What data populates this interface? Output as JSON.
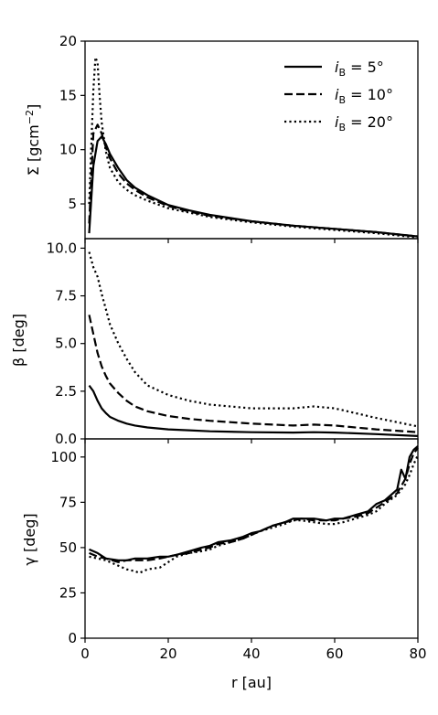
{
  "chart_data": [
    {
      "type": "line",
      "panel": "top",
      "ylabel": "Σ [gcm",
      "ylabel_sup": "−2",
      "ylabel_end": "]",
      "xlim": [
        0,
        80
      ],
      "ylim": [
        1.8,
        20
      ],
      "yticks": [
        5,
        10,
        15,
        20
      ],
      "yticklabels": [
        "5",
        "10",
        "15",
        "20"
      ],
      "xticks": [
        0,
        20,
        40,
        60,
        80
      ],
      "legend": {
        "placement": "top-right",
        "entries": [
          {
            "prefix": "i",
            "sub": "B",
            "value": " = 5°",
            "style": "solid"
          },
          {
            "prefix": "i",
            "sub": "B",
            "value": " = 10°",
            "style": "dashed"
          },
          {
            "prefix": "i",
            "sub": "B",
            "value": " = 20°",
            "style": "dotted"
          }
        ]
      },
      "series": [
        {
          "style": "solid",
          "x": [
            1,
            2,
            3,
            4,
            5,
            6,
            8,
            10,
            12,
            15,
            20,
            25,
            30,
            40,
            50,
            60,
            70,
            80
          ],
          "y": [
            2.3,
            8.5,
            10.8,
            11.2,
            10.5,
            9.6,
            8.3,
            7.2,
            6.5,
            5.8,
            4.9,
            4.4,
            4.0,
            3.4,
            3.0,
            2.7,
            2.4,
            2.0
          ]
        },
        {
          "style": "dashed",
          "x": [
            1,
            2,
            3,
            4,
            5,
            6,
            8,
            10,
            12,
            15,
            20,
            25,
            30,
            40,
            50,
            60,
            70,
            80
          ],
          "y": [
            3.2,
            11.5,
            12.3,
            11.5,
            10.2,
            9.2,
            7.8,
            6.9,
            6.3,
            5.6,
            4.8,
            4.3,
            3.9,
            3.4,
            3.0,
            2.7,
            2.4,
            2.0
          ]
        },
        {
          "style": "dotted",
          "x": [
            1,
            2,
            2.5,
            3,
            3.5,
            4,
            5,
            6,
            8,
            10,
            12,
            15,
            20,
            25,
            30,
            40,
            50,
            60,
            70,
            80
          ],
          "y": [
            5.0,
            15.5,
            18.5,
            18.0,
            15.0,
            12.5,
            9.8,
            8.3,
            7.0,
            6.3,
            5.8,
            5.3,
            4.6,
            4.2,
            3.8,
            3.3,
            2.9,
            2.6,
            2.3,
            1.9
          ]
        }
      ]
    },
    {
      "type": "line",
      "panel": "middle",
      "ylabel": "β [deg]",
      "xlim": [
        0,
        80
      ],
      "ylim": [
        0,
        10.5
      ],
      "yticks": [
        0,
        2.5,
        5,
        7.5,
        10
      ],
      "yticklabels": [
        "0.0",
        "2.5",
        "5.0",
        "7.5",
        "10.0"
      ],
      "xticks": [
        0,
        20,
        40,
        60,
        80
      ],
      "series": [
        {
          "style": "solid",
          "x": [
            1,
            2,
            3,
            4,
            5,
            6,
            8,
            10,
            12,
            15,
            20,
            25,
            30,
            40,
            50,
            55,
            60,
            70,
            80
          ],
          "y": [
            2.8,
            2.5,
            2.0,
            1.6,
            1.35,
            1.15,
            0.95,
            0.8,
            0.7,
            0.6,
            0.5,
            0.45,
            0.4,
            0.35,
            0.33,
            0.35,
            0.33,
            0.25,
            0.15
          ]
        },
        {
          "style": "dashed",
          "x": [
            1,
            2,
            3,
            4,
            5,
            6,
            8,
            10,
            12,
            15,
            20,
            25,
            30,
            40,
            50,
            55,
            60,
            70,
            80
          ],
          "y": [
            6.5,
            5.5,
            4.5,
            3.8,
            3.3,
            2.9,
            2.4,
            2.0,
            1.7,
            1.45,
            1.2,
            1.05,
            0.95,
            0.8,
            0.7,
            0.75,
            0.7,
            0.5,
            0.35
          ]
        },
        {
          "style": "dotted",
          "x": [
            1,
            2,
            3,
            4,
            5,
            6,
            8,
            10,
            12,
            15,
            20,
            25,
            30,
            40,
            50,
            55,
            60,
            70,
            80
          ],
          "y": [
            9.8,
            9.0,
            8.5,
            7.6,
            6.8,
            6.0,
            5.0,
            4.2,
            3.5,
            2.8,
            2.3,
            2.0,
            1.8,
            1.6,
            1.6,
            1.7,
            1.6,
            1.1,
            0.65
          ]
        }
      ]
    },
    {
      "type": "line",
      "panel": "bottom",
      "ylabel": "γ [deg]",
      "xlabel": "r [au]",
      "xlim": [
        0,
        80
      ],
      "ylim": [
        0,
        110
      ],
      "yticks": [
        0,
        25,
        50,
        75,
        100
      ],
      "yticklabels": [
        "0",
        "25",
        "50",
        "75",
        "100"
      ],
      "xticks": [
        0,
        20,
        40,
        60,
        80
      ],
      "xticklabels": [
        "0",
        "20",
        "40",
        "60",
        "80"
      ],
      "series": [
        {
          "style": "solid",
          "x": [
            1,
            3,
            5,
            8,
            10,
            12,
            15,
            18,
            20,
            22,
            25,
            28,
            30,
            32,
            35,
            38,
            40,
            42,
            45,
            48,
            50,
            52,
            55,
            58,
            60,
            62,
            65,
            68,
            70,
            72,
            75,
            76,
            77,
            78,
            79,
            80
          ],
          "y": [
            49,
            47,
            44,
            43,
            43,
            44,
            44,
            45,
            45,
            46,
            48,
            50,
            51,
            53,
            54,
            56,
            58,
            59,
            62,
            64,
            66,
            66,
            66,
            65,
            66,
            66,
            68,
            70,
            74,
            76,
            82,
            93,
            88,
            100,
            104,
            106
          ]
        },
        {
          "style": "dashed",
          "x": [
            1,
            3,
            5,
            8,
            10,
            12,
            15,
            18,
            20,
            22,
            25,
            28,
            30,
            32,
            35,
            38,
            40,
            42,
            45,
            48,
            50,
            52,
            55,
            58,
            60,
            62,
            65,
            68,
            70,
            72,
            75,
            77,
            78,
            79,
            80
          ],
          "y": [
            47,
            45,
            44,
            42,
            43,
            43,
            43,
            44,
            45,
            46,
            47,
            49,
            50,
            52,
            53,
            55,
            57,
            59,
            62,
            64,
            65,
            66,
            65,
            65,
            65,
            66,
            67,
            69,
            72,
            75,
            80,
            88,
            96,
            102,
            105
          ]
        },
        {
          "style": "dotted",
          "x": [
            1,
            3,
            5,
            8,
            10,
            12,
            13,
            15,
            18,
            20,
            22,
            25,
            28,
            30,
            32,
            35,
            38,
            40,
            42,
            45,
            48,
            50,
            52,
            55,
            58,
            60,
            62,
            65,
            68,
            70,
            72,
            75,
            77,
            78,
            79,
            80
          ],
          "y": [
            45,
            44,
            43,
            40,
            38,
            37,
            36,
            38,
            39,
            42,
            45,
            47,
            48,
            49,
            51,
            53,
            55,
            57,
            59,
            61,
            63,
            65,
            65,
            64,
            63,
            63,
            64,
            66,
            68,
            70,
            74,
            79,
            85,
            90,
            96,
            101
          ]
        }
      ]
    }
  ]
}
